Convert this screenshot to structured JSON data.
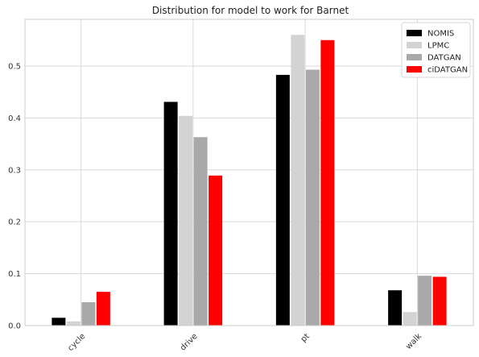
{
  "chart_data": {
    "type": "bar",
    "title": "Distribution for model to work for Barnet",
    "xlabel": "",
    "ylabel": "",
    "categories": [
      "cycle",
      "drive",
      "pt",
      "walk"
    ],
    "ylim": [
      0,
      0.59
    ],
    "yticks": [
      0.0,
      0.1,
      0.2,
      0.3,
      0.4,
      0.5
    ],
    "ytick_labels": [
      "0.0",
      "0.1",
      "0.2",
      "0.3",
      "0.4",
      "0.5"
    ],
    "grid": true,
    "legend_position": "top-right",
    "series": [
      {
        "name": "NOMIS",
        "color": "#000000",
        "values": [
          0.015,
          0.431,
          0.483,
          0.068
        ]
      },
      {
        "name": "LPMC",
        "color": "#d3d3d3",
        "values": [
          0.008,
          0.404,
          0.56,
          0.026
        ]
      },
      {
        "name": "DATGAN",
        "color": "#a9a9a9",
        "values": [
          0.045,
          0.363,
          0.493,
          0.096
        ]
      },
      {
        "name": "ciDATGAN",
        "color": "#ff0000",
        "values": [
          0.065,
          0.289,
          0.55,
          0.094
        ]
      }
    ]
  }
}
